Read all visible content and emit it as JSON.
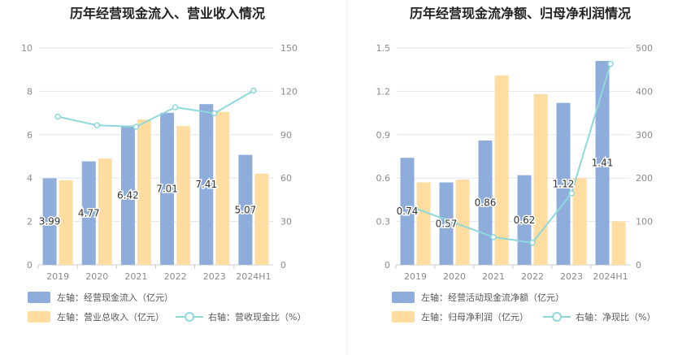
{
  "colors": {
    "bar_primary": "#8EADDB",
    "bar_secondary": "#FFDDA0",
    "line": "#8ED8DD",
    "axis_text": "#8a8a8a",
    "grid": "#e4e6ee",
    "title": "#222222",
    "divider": "#eeeeee"
  },
  "chart_data": [
    {
      "type": "bar",
      "title": "历年经营现金流入、营业收入情况",
      "categories": [
        "2019",
        "2020",
        "2021",
        "2022",
        "2023",
        "2024H1"
      ],
      "left_axis": {
        "ylim": [
          0,
          10
        ],
        "ticks": [
          "0",
          "2",
          "4",
          "6",
          "8",
          "10"
        ]
      },
      "right_axis": {
        "ylim": [
          0,
          150
        ],
        "ticks": [
          "0",
          "30",
          "60",
          "90",
          "120",
          "150"
        ]
      },
      "series": [
        {
          "name": "左轴：经营现金流入（亿元）",
          "axis": "left",
          "kind": "bar",
          "values": [
            3.99,
            4.77,
            6.42,
            7.01,
            7.41,
            5.07
          ],
          "labels": [
            "3.99",
            "4.77",
            "6.42",
            "7.01",
            "7.41",
            "5.07"
          ]
        },
        {
          "name": "左轴：营业总收入（亿元）",
          "axis": "left",
          "kind": "bar",
          "values": [
            3.9,
            4.9,
            6.7,
            6.4,
            7.05,
            4.2
          ]
        },
        {
          "name": "右轴：营收现金比（%）",
          "axis": "right",
          "kind": "line",
          "values": [
            102.5,
            96.5,
            95.5,
            109.0,
            104.8,
            120.5
          ]
        }
      ],
      "legend_position": "bottom",
      "grid": true
    },
    {
      "type": "bar",
      "title": "历年经营现金流净额、归母净利润情况",
      "categories": [
        "2019",
        "2020",
        "2021",
        "2022",
        "2023",
        "2024H1"
      ],
      "left_axis": {
        "ylim": [
          0,
          1.5
        ],
        "ticks": [
          "0",
          "0.3",
          "0.6",
          "0.9",
          "1.2",
          "1.5"
        ]
      },
      "right_axis": {
        "ylim": [
          0,
          500
        ],
        "ticks": [
          "0",
          "100",
          "200",
          "300",
          "400",
          "500"
        ]
      },
      "series": [
        {
          "name": "左轴：经营活动现金流净额（亿元）",
          "axis": "left",
          "kind": "bar",
          "values": [
            0.74,
            0.57,
            0.86,
            0.62,
            1.12,
            1.41
          ],
          "labels": [
            "0.74",
            "0.57",
            "0.86",
            "0.62",
            "1.12",
            "1.41"
          ]
        },
        {
          "name": "左轴：归母净利润（亿元）",
          "axis": "left",
          "kind": "bar",
          "values": [
            0.57,
            0.59,
            1.31,
            1.18,
            0.6,
            0.3
          ]
        },
        {
          "name": "右轴：净现比（%）",
          "axis": "right",
          "kind": "line",
          "values": [
            130,
            97,
            64,
            51,
            165,
            463
          ]
        }
      ],
      "legend_position": "bottom",
      "grid": true
    }
  ]
}
